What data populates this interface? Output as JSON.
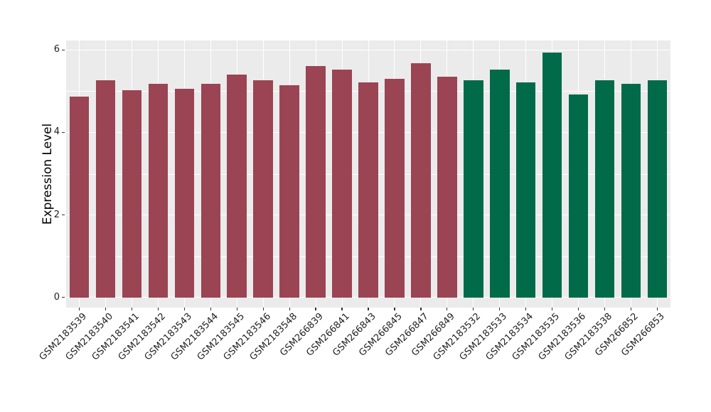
{
  "chart_data": {
    "type": "bar",
    "title": "",
    "xlabel": "",
    "ylabel": "Expression Level",
    "yticks": [
      0,
      2,
      4,
      6
    ],
    "minor_gridlines": [
      1,
      3,
      5
    ],
    "ylim": [
      -0.28,
      6.25
    ],
    "grid": true,
    "legend": "none",
    "panel_bg": "#EBEBEB",
    "grid_color": "#FFFFFF",
    "groups": [
      {
        "name": "group1",
        "color": "#9B4453"
      },
      {
        "name": "group2",
        "color": "#016A48"
      }
    ],
    "bars": [
      {
        "label": "GSM2183539",
        "value": 4.87,
        "group": "group1"
      },
      {
        "label": "GSM2183540",
        "value": 5.27,
        "group": "group1"
      },
      {
        "label": "GSM2183541",
        "value": 5.02,
        "group": "group1"
      },
      {
        "label": "GSM2183542",
        "value": 5.17,
        "group": "group1"
      },
      {
        "label": "GSM2183543",
        "value": 5.06,
        "group": "group1"
      },
      {
        "label": "GSM2183544",
        "value": 5.17,
        "group": "group1"
      },
      {
        "label": "GSM2183545",
        "value": 5.4,
        "group": "group1"
      },
      {
        "label": "GSM2183546",
        "value": 5.26,
        "group": "group1"
      },
      {
        "label": "GSM2183548",
        "value": 5.15,
        "group": "group1"
      },
      {
        "label": "GSM266839",
        "value": 5.6,
        "group": "group1"
      },
      {
        "label": "GSM266841",
        "value": 5.53,
        "group": "group1"
      },
      {
        "label": "GSM266843",
        "value": 5.21,
        "group": "group1"
      },
      {
        "label": "GSM266845",
        "value": 5.3,
        "group": "group1"
      },
      {
        "label": "GSM266847",
        "value": 5.68,
        "group": "group1"
      },
      {
        "label": "GSM266849",
        "value": 5.35,
        "group": "group1"
      },
      {
        "label": "GSM2183532",
        "value": 5.27,
        "group": "group2"
      },
      {
        "label": "GSM2183533",
        "value": 5.53,
        "group": "group2"
      },
      {
        "label": "GSM2183534",
        "value": 5.22,
        "group": "group2"
      },
      {
        "label": "GSM2183535",
        "value": 5.93,
        "group": "group2"
      },
      {
        "label": "GSM2183536",
        "value": 4.92,
        "group": "group2"
      },
      {
        "label": "GSM2183538",
        "value": 5.26,
        "group": "group2"
      },
      {
        "label": "GSM266852",
        "value": 5.17,
        "group": "group2"
      },
      {
        "label": "GSM266853",
        "value": 5.27,
        "group": "group2"
      }
    ]
  }
}
